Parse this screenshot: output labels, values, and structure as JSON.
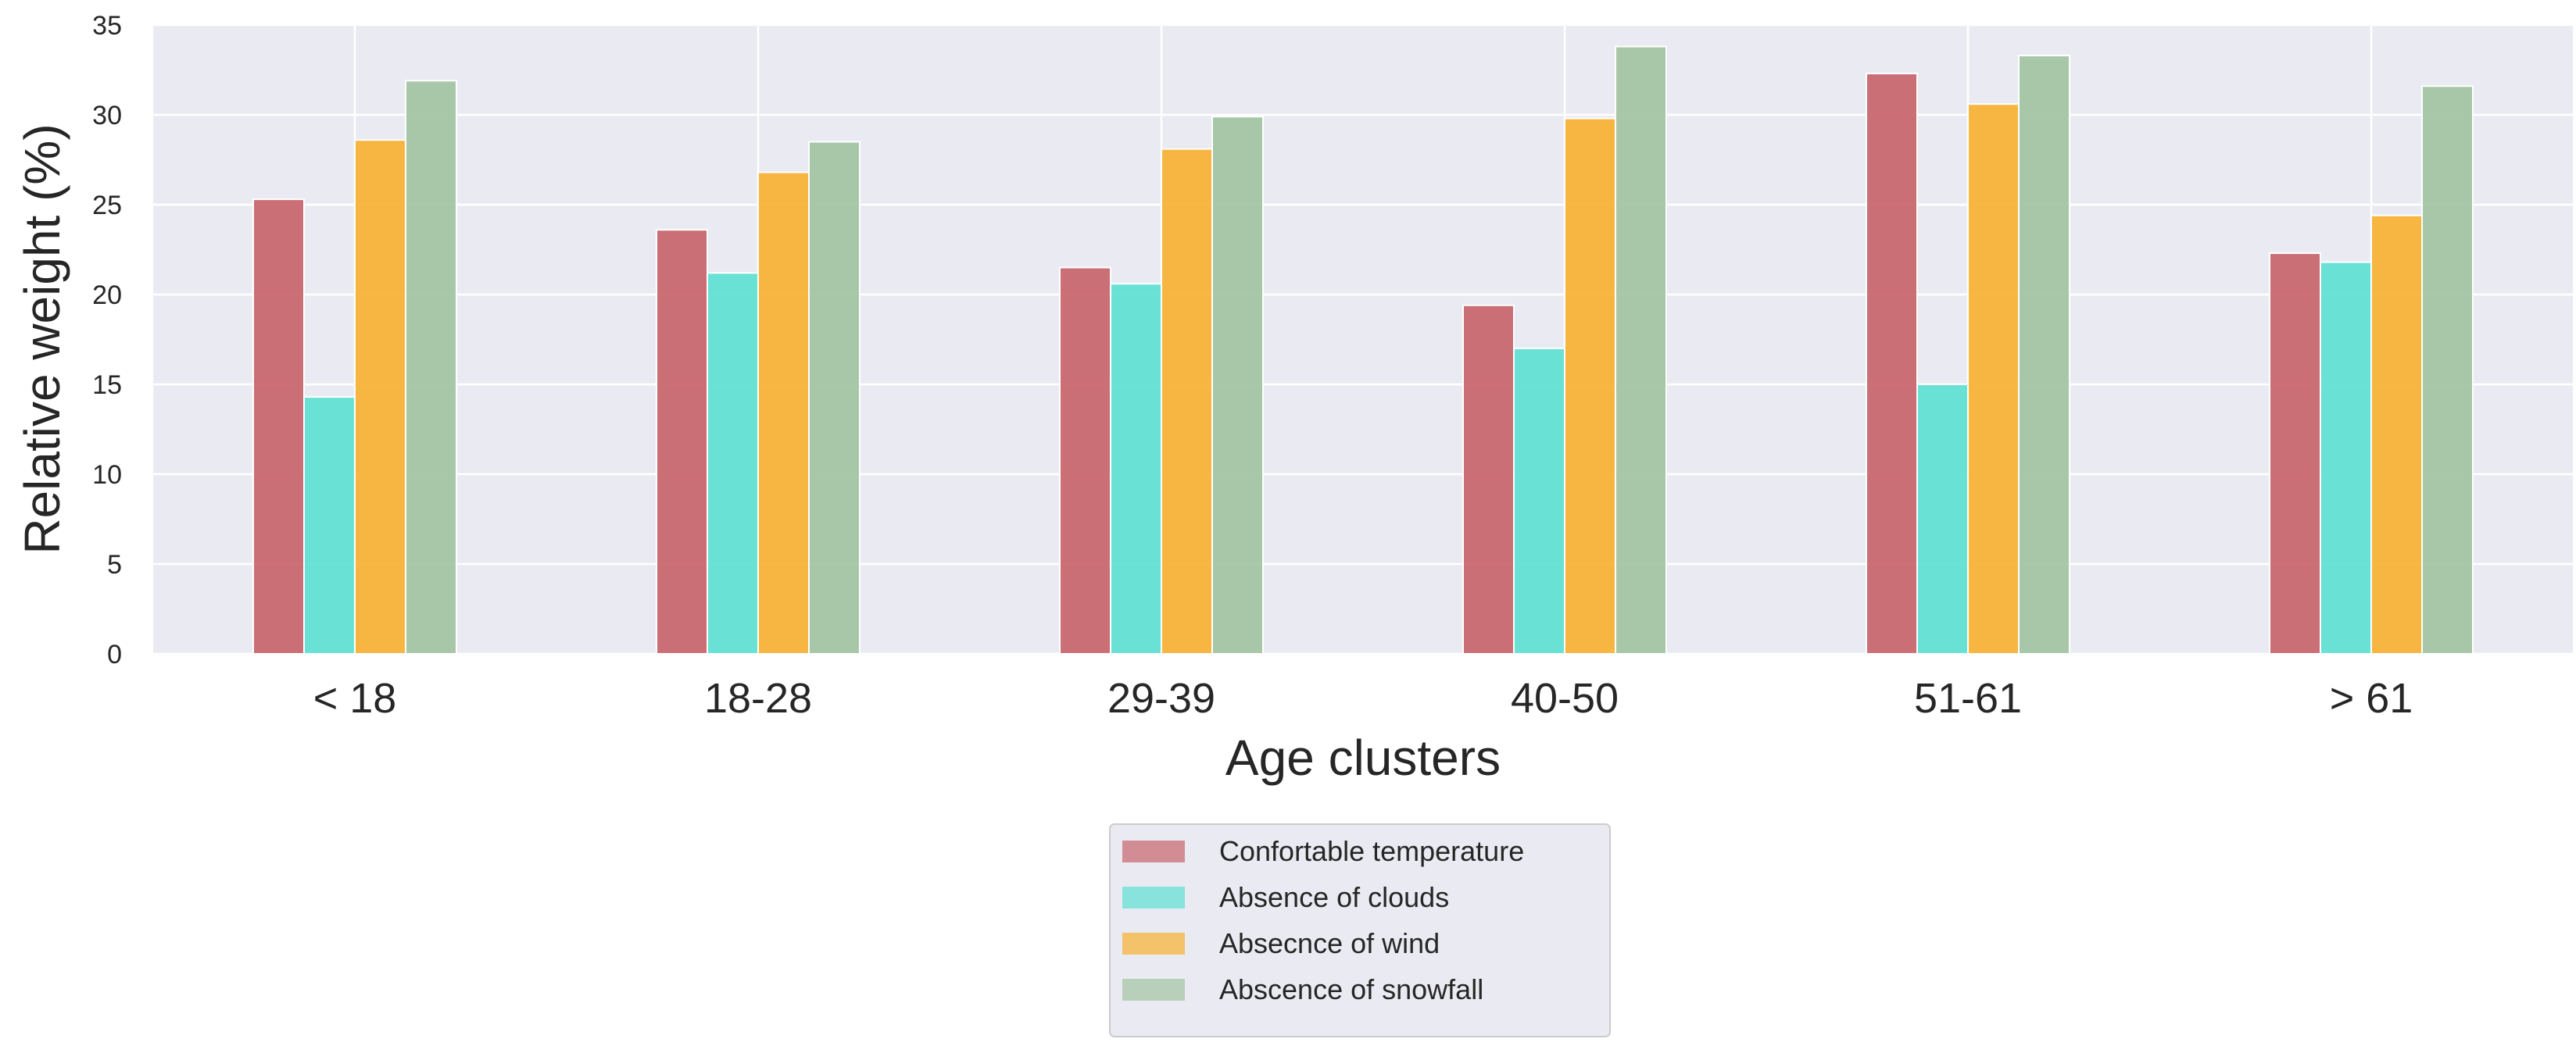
{
  "chart_data": {
    "type": "bar",
    "title": "",
    "xlabel": "Age clusters",
    "ylabel": "Relative weight (%)",
    "ylim": [
      0,
      35
    ],
    "yticks": [
      0,
      5,
      10,
      15,
      20,
      25,
      30,
      35
    ],
    "grid": true,
    "legend_position": "bottom-center",
    "categories": [
      "< 18",
      "18-28",
      "29-39",
      "40-50",
      "51-61",
      "> 61"
    ],
    "series": [
      {
        "name": "Confortable temperature",
        "color": "#c8646b",
        "values": [
          25.3,
          23.6,
          21.5,
          19.4,
          32.3,
          22.3
        ]
      },
      {
        "name": "Absence of clouds",
        "color": "#5ddfd3",
        "values": [
          14.3,
          21.2,
          20.6,
          17.0,
          15.0,
          21.8
        ]
      },
      {
        "name": "Absecnce of wind",
        "color": "#f7b032",
        "values": [
          28.6,
          26.8,
          28.1,
          29.8,
          30.6,
          24.4
        ]
      },
      {
        "name": "Abscence of snowfall",
        "color": "#a2c3a2",
        "values": [
          31.9,
          28.5,
          29.9,
          33.8,
          33.3,
          31.6
        ]
      }
    ],
    "legend_labels": [
      "Confortable temperature",
      " Absence of clouds",
      "Absecnce of wind",
      " Abscence of snowfall"
    ]
  }
}
